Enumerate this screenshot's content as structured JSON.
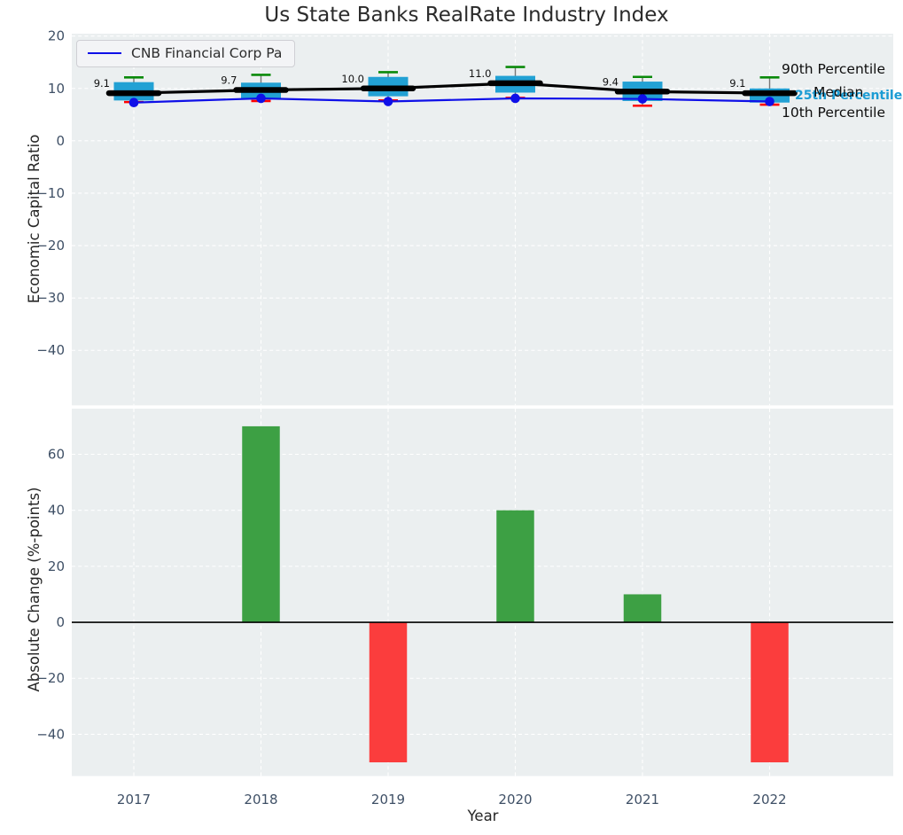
{
  "figure": {
    "title": "Us State Banks RealRate Industry Index",
    "colors": {
      "plot_background": "#ebeff0",
      "gridline": "#ffffff",
      "box_fill": "#22a1d4",
      "p90_cap": "#0a8a0a",
      "p10_cap": "#ff0000",
      "median": "#000000",
      "company_line": "#0f10e8",
      "bar_positive": "#3da044",
      "bar_negative": "#fb3d3d",
      "tick_label": "#3f5066",
      "annotation_cyan": "#1b9cd4",
      "whisker": "#777777"
    }
  },
  "chart_data": [
    {
      "type": "box",
      "title": "Us State Banks RealRate Industry Index",
      "ylabel": "Economic Capital Ratio",
      "categories": [
        "2017",
        "2018",
        "2019",
        "2020",
        "2021",
        "2022"
      ],
      "yticks": [
        20,
        10,
        0,
        -10,
        -20,
        -30,
        -40
      ],
      "ylim": [
        -50.5,
        20.45
      ],
      "grid": true,
      "legend": {
        "position": "upper left",
        "entries": [
          "CNB Financial Corp Pa"
        ]
      },
      "series": [
        {
          "name": "90th Percentile",
          "values": [
            12.1,
            12.6,
            13.1,
            14.1,
            12.2,
            12.1
          ]
        },
        {
          "name": "75th Percentile",
          "values": [
            11.2,
            11.1,
            12.2,
            12.4,
            11.3,
            10.0
          ]
        },
        {
          "name": "Median",
          "values": [
            9.1,
            9.7,
            10.0,
            11.0,
            9.4,
            9.1
          ]
        },
        {
          "name": "25th Percentile",
          "values": [
            7.7,
            7.9,
            8.5,
            9.2,
            7.6,
            7.3
          ]
        },
        {
          "name": "10th Percentile",
          "values": [
            7.4,
            7.6,
            7.7,
            8.2,
            6.7,
            6.9
          ]
        },
        {
          "name": "CNB Financial Corp Pa",
          "values": [
            7.3,
            8.1,
            7.5,
            8.1,
            8.0,
            7.5
          ]
        }
      ],
      "median_labels": [
        "9.1",
        "9.7",
        "10.0",
        "11.0",
        "9.4",
        "9.1"
      ],
      "annotations": [
        {
          "text": "90th Percentile",
          "color": "#0d0d0d"
        },
        {
          "text": "Median",
          "color": "#0d0d0d"
        },
        {
          "text": "25th Percentile",
          "color": "#1b9cd4"
        },
        {
          "text": "10th Percentile",
          "color": "#0d0d0d"
        }
      ]
    },
    {
      "type": "bar",
      "ylabel": "Absolute Change (%-points)",
      "xlabel": "Year",
      "categories": [
        "2017",
        "2018",
        "2019",
        "2020",
        "2021",
        "2022"
      ],
      "values": [
        null,
        70,
        -50,
        40,
        10,
        -50
      ],
      "yticks": [
        60,
        40,
        20,
        0,
        -20,
        -40
      ],
      "ylim": [
        -54.9,
        76.3
      ],
      "grid": true,
      "zero_line": true
    }
  ]
}
